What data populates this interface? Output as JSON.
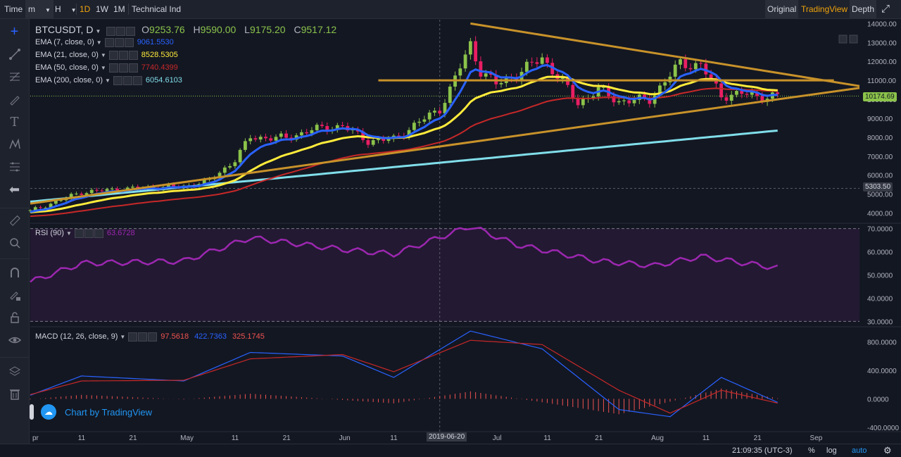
{
  "toolbar": {
    "time_label": "Time",
    "interval_minutes": "m",
    "interval_hours": "H",
    "interval_1d": "1D",
    "interval_1w": "1W",
    "interval_1m": "1M",
    "indicators": "Technical Ind",
    "view_original": "Original",
    "view_tradingview": "TradingView",
    "view_depth": "Depth"
  },
  "symbol": {
    "name": "BTCUSDT, D",
    "open_label": "O",
    "open": "9253.76",
    "high_label": "H",
    "high": "9590.00",
    "low_label": "L",
    "low": "9175.20",
    "close_label": "C",
    "close": "9517.12"
  },
  "ema": [
    {
      "label": "EMA (7, close, 0)",
      "value": "9061.5530",
      "color": "#2962ff"
    },
    {
      "label": "EMA (21, close, 0)",
      "value": "8528.5305",
      "color": "#ffeb3b"
    },
    {
      "label": "EMA (50, close, 0)",
      "value": "7740.4399",
      "color": "#c62828"
    },
    {
      "label": "EMA (200, close, 0)",
      "value": "6054.6103",
      "color": "#80deea"
    }
  ],
  "rsi": {
    "label": "RSI (90)",
    "value": "63.6728"
  },
  "macd": {
    "label": "MACD (12, 26, close, 9)",
    "hist": "97.5618",
    "macd": "422.7363",
    "signal": "325.1745"
  },
  "watermark": "Chart by TradingView",
  "current_price": "10174.69",
  "crosshair_price": "5303.50",
  "crosshair_date": "2019-06-20",
  "price_ticks": [
    "14000.00",
    "13000.00",
    "12000.00",
    "11000.00",
    "10000.00",
    "9000.00",
    "8000.00",
    "7000.00",
    "6000.00",
    "5000.00",
    "4000.00"
  ],
  "rsi_ticks": [
    "70.0000",
    "60.0000",
    "50.0000",
    "40.0000",
    "30.0000"
  ],
  "macd_ticks": [
    "800.0000",
    "400.0000",
    "0.0000",
    "-400.0000"
  ],
  "time_ticks": [
    "pr",
    "11",
    "21",
    "May",
    "11",
    "21",
    "Jun",
    "11",
    "21",
    "Jul",
    "11",
    "21",
    "Aug",
    "11",
    "21",
    "Sep"
  ],
  "footer": {
    "clock": "21:09:35 (UTC-3)",
    "pct": "%",
    "log": "log",
    "auto": "auto"
  },
  "colors": {
    "up": "#8bc34a",
    "down": "#e91e63",
    "triangle": "#c8922a",
    "rsi": "#9c27b0",
    "macd_line": "#2962ff",
    "signal_line": "#c62828",
    "accent": "#f0a30a"
  },
  "chart_data": {
    "type": "candlestick",
    "title": "BTCUSDT, D",
    "x_range": [
      "2019-04-01",
      "2019-09-10"
    ],
    "ylim": [
      3500,
      14200
    ],
    "price_close_points": [
      [
        "2019-04-01",
        4100
      ],
      [
        "2019-04-11",
        5100
      ],
      [
        "2019-04-21",
        5300
      ],
      [
        "2019-05-01",
        5400
      ],
      [
        "2019-05-06",
        5700
      ],
      [
        "2019-05-11",
        6800
      ],
      [
        "2019-05-14",
        8000
      ],
      [
        "2019-05-21",
        7950
      ],
      [
        "2019-05-26",
        8400
      ],
      [
        "2019-06-01",
        8600
      ],
      [
        "2019-06-06",
        7800
      ],
      [
        "2019-06-11",
        7900
      ],
      [
        "2019-06-16",
        8800
      ],
      [
        "2019-06-20",
        9500
      ],
      [
        "2019-06-22",
        10500
      ],
      [
        "2019-06-26",
        12900
      ],
      [
        "2019-06-28",
        11500
      ],
      [
        "2019-07-01",
        10800
      ],
      [
        "2019-07-05",
        11300
      ],
      [
        "2019-07-10",
        12200
      ],
      [
        "2019-07-14",
        10900
      ],
      [
        "2019-07-17",
        9800
      ],
      [
        "2019-07-21",
        10500
      ],
      [
        "2019-07-25",
        9900
      ],
      [
        "2019-07-31",
        10000
      ],
      [
        "2019-08-06",
        11900
      ],
      [
        "2019-08-10",
        11800
      ],
      [
        "2019-08-14",
        10200
      ],
      [
        "2019-08-18",
        10300
      ],
      [
        "2019-08-21",
        10150
      ],
      [
        "2019-08-25",
        10174
      ]
    ],
    "triangle_upper": [
      [
        "2019-06-26",
        14000
      ],
      [
        "2019-09-10",
        10700
      ]
    ],
    "triangle_lower": [
      [
        "2019-04-01",
        4500
      ],
      [
        "2019-09-10",
        10600
      ]
    ],
    "horizontal_level": 11000,
    "rsi_points": [
      [
        "2019-04-01",
        47
      ],
      [
        "2019-04-11",
        55
      ],
      [
        "2019-05-01",
        56
      ],
      [
        "2019-05-14",
        66
      ],
      [
        "2019-06-01",
        61
      ],
      [
        "2019-06-11",
        59
      ],
      [
        "2019-06-26",
        71
      ],
      [
        "2019-07-05",
        63
      ],
      [
        "2019-07-21",
        56
      ],
      [
        "2019-08-01",
        54
      ],
      [
        "2019-08-10",
        58
      ],
      [
        "2019-08-25",
        53
      ]
    ],
    "rsi_range": [
      28,
      72
    ],
    "macd_points": [
      [
        "2019-04-01",
        50
      ],
      [
        "2019-04-11",
        320
      ],
      [
        "2019-05-01",
        250
      ],
      [
        "2019-05-14",
        650
      ],
      [
        "2019-06-01",
        600
      ],
      [
        "2019-06-11",
        300
      ],
      [
        "2019-06-26",
        950
      ],
      [
        "2019-07-10",
        700
      ],
      [
        "2019-07-25",
        -150
      ],
      [
        "2019-08-04",
        -250
      ],
      [
        "2019-08-14",
        300
      ],
      [
        "2019-08-25",
        -50
      ]
    ],
    "signal_points": [
      [
        "2019-04-01",
        60
      ],
      [
        "2019-04-11",
        250
      ],
      [
        "2019-05-01",
        260
      ],
      [
        "2019-05-14",
        560
      ],
      [
        "2019-06-01",
        620
      ],
      [
        "2019-06-11",
        380
      ],
      [
        "2019-06-26",
        820
      ],
      [
        "2019-07-10",
        760
      ],
      [
        "2019-07-25",
        120
      ],
      [
        "2019-08-04",
        -200
      ],
      [
        "2019-08-14",
        120
      ],
      [
        "2019-08-25",
        -60
      ]
    ],
    "macd_range": [
      -450,
      1000
    ]
  }
}
